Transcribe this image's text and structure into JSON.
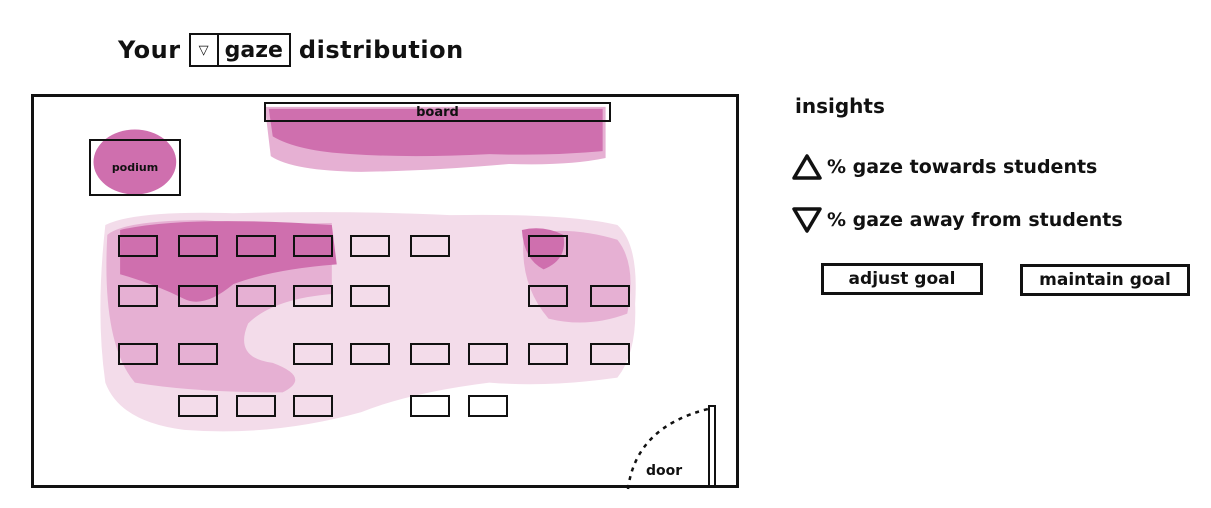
{
  "header": {
    "prefix": "Your",
    "selected_metric": "gaze",
    "suffix": "distribution"
  },
  "room": {
    "board_label": "board",
    "podium_label": "podium",
    "door_label": "door",
    "heat_colors": {
      "high": "#cf6fae",
      "medium": "#e6b0d3",
      "low": "#f3dcea"
    }
  },
  "insights": {
    "title": "insights",
    "items": [
      {
        "icon": "triangle-up-icon",
        "text": "% gaze towards students"
      },
      {
        "icon": "triangle-down-icon",
        "text": "% gaze away from students"
      }
    ]
  },
  "actions": {
    "adjust_label": "adjust goal",
    "maintain_label": "maintain goal"
  }
}
